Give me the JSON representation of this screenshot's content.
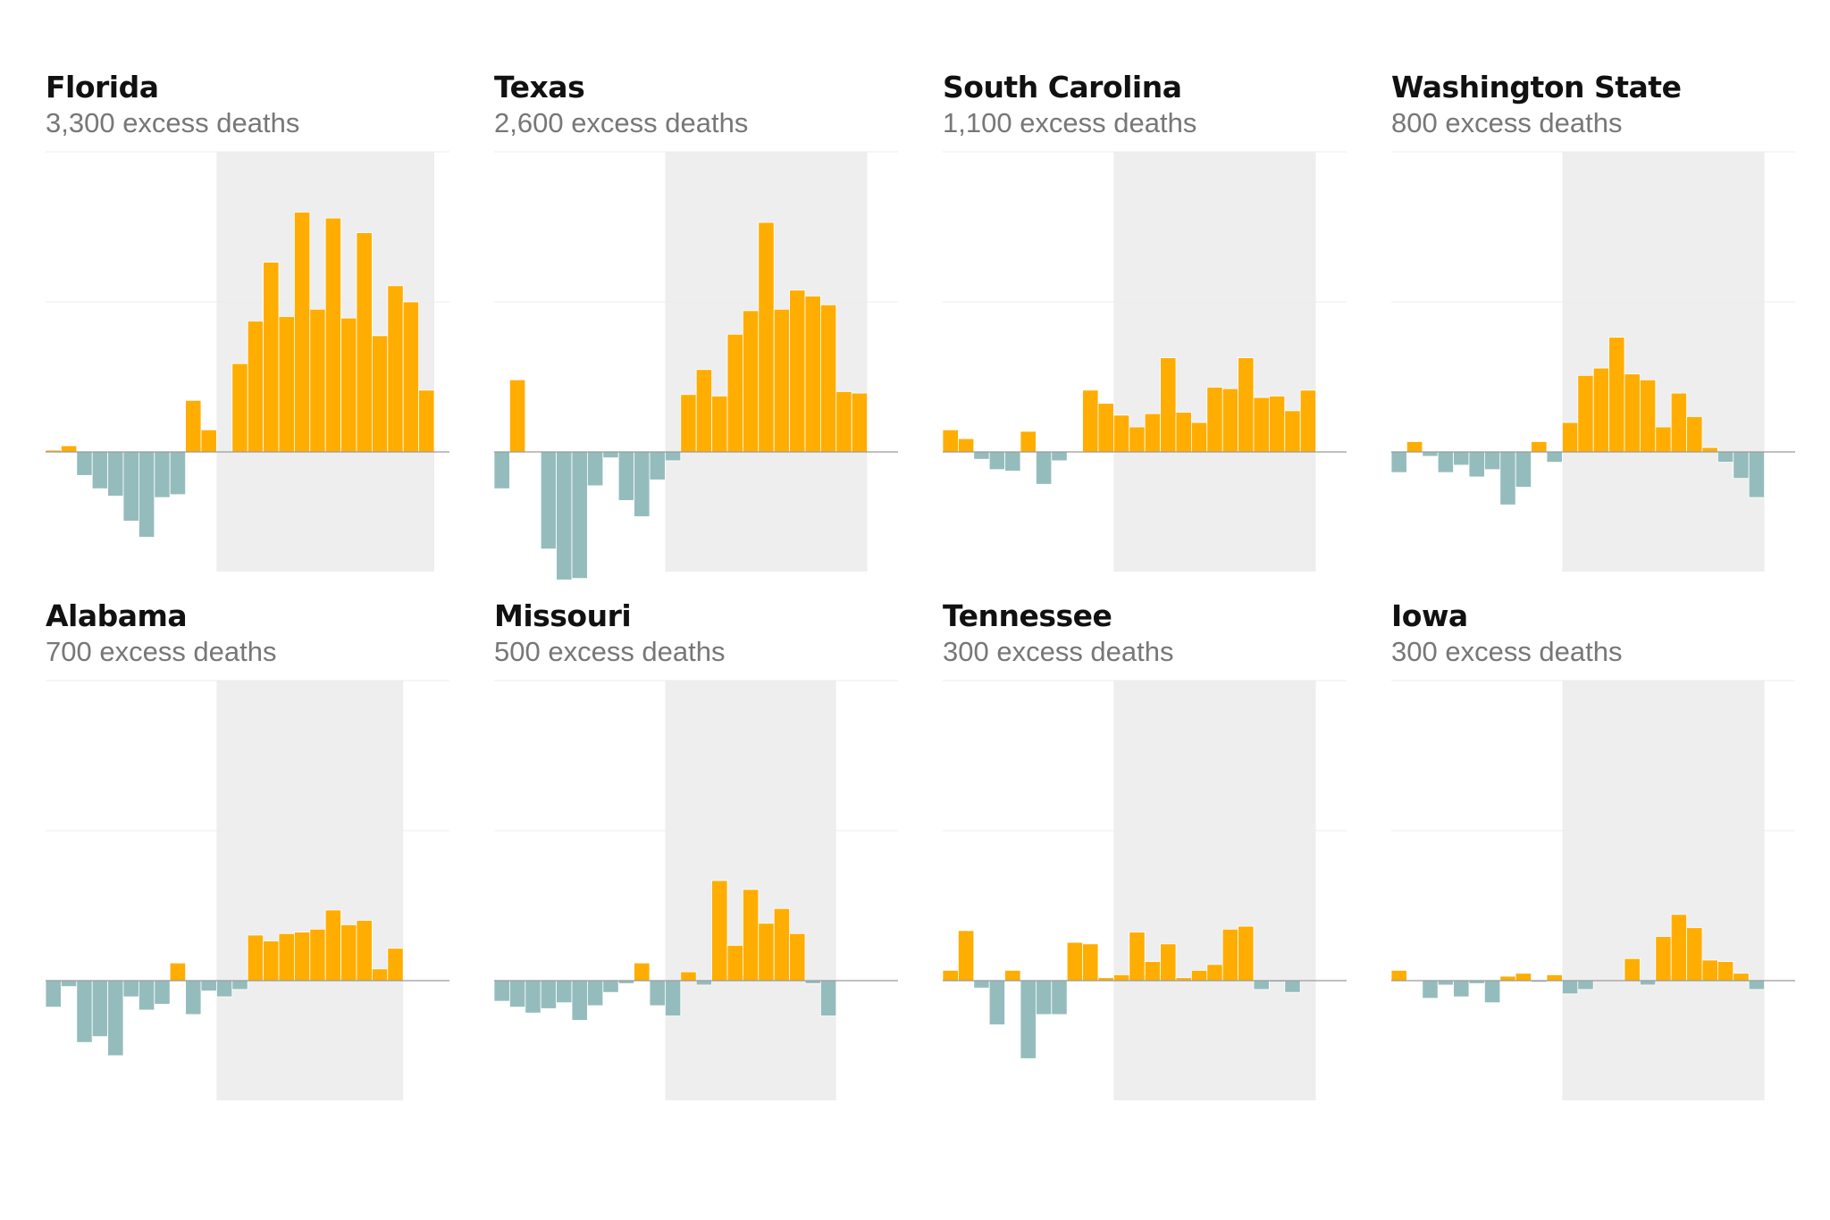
{
  "colors": {
    "positive": "#ffad00",
    "negative": "#95bcbd",
    "shade": "#eeeeee",
    "gridline": "#ececec",
    "baseline": "#9a9a9a"
  },
  "chart_data": [
    {
      "type": "bar",
      "title": "Florida",
      "subtitle": "3,300 excess deaths",
      "values": [
        6,
        21,
        -80,
        -125,
        -150,
        -235,
        -290,
        -155,
        -145,
        175,
        75,
        0,
        300,
        445,
        645,
        460,
        815,
        485,
        795,
        455,
        745,
        395,
        565,
        510,
        210
      ],
      "shaded_range": [
        11,
        24
      ],
      "ylim": [
        -410,
        1020
      ]
    },
    {
      "type": "bar",
      "title": "Texas",
      "subtitle": "2,600 excess deaths",
      "values": [
        -125,
        245,
        0,
        -330,
        -435,
        -430,
        -115,
        -20,
        -165,
        -220,
        -95,
        -30,
        195,
        280,
        190,
        400,
        480,
        780,
        485,
        550,
        530,
        500,
        205,
        200
      ],
      "shaded_range": [
        11,
        23
      ],
      "ylim": [
        -410,
        1020
      ]
    },
    {
      "type": "bar",
      "title": "South Carolina",
      "subtitle": "1,100 excess deaths",
      "values": [
        75,
        45,
        -25,
        -60,
        -65,
        70,
        -110,
        -30,
        0,
        210,
        165,
        125,
        85,
        130,
        320,
        135,
        100,
        220,
        215,
        320,
        185,
        190,
        140,
        210
      ],
      "shaded_range": [
        11,
        23
      ],
      "ylim": [
        -410,
        1020
      ]
    },
    {
      "type": "bar",
      "title": "Washington State",
      "subtitle": "800 excess deaths",
      "values": [
        -70,
        35,
        -15,
        -70,
        -45,
        -85,
        -60,
        -180,
        -120,
        35,
        -35,
        100,
        260,
        285,
        390,
        265,
        245,
        85,
        200,
        120,
        15,
        -35,
        -90,
        -155
      ],
      "shaded_range": [
        11,
        23
      ],
      "ylim": [
        -410,
        1020
      ]
    },
    {
      "type": "bar",
      "title": "Alabama",
      "subtitle": "700 excess deaths",
      "values": [
        -90,
        -20,
        -210,
        -190,
        -255,
        -55,
        -100,
        -80,
        60,
        -115,
        -35,
        -55,
        -30,
        155,
        135,
        160,
        165,
        175,
        240,
        190,
        205,
        40,
        110
      ],
      "shaded_range": [
        11,
        22
      ],
      "ylim": [
        -410,
        1020
      ]
    },
    {
      "type": "bar",
      "title": "Missouri",
      "subtitle": "500 excess deaths",
      "values": [
        -70,
        -90,
        -110,
        -95,
        -75,
        -135,
        -85,
        -40,
        -10,
        60,
        -85,
        -120,
        30,
        -15,
        340,
        120,
        310,
        195,
        245,
        160,
        -10,
        -120
      ],
      "shaded_range": [
        11,
        21
      ],
      "ylim": [
        -410,
        1020
      ]
    },
    {
      "type": "bar",
      "title": "Tennessee",
      "subtitle": "300 excess deaths",
      "values": [
        35,
        170,
        -25,
        -150,
        35,
        -265,
        -115,
        -115,
        130,
        125,
        10,
        20,
        165,
        65,
        125,
        10,
        35,
        55,
        175,
        185,
        -30,
        -5,
        -40
      ],
      "shaded_range": [
        11,
        23
      ],
      "ylim": [
        -410,
        1020
      ]
    },
    {
      "type": "bar",
      "title": "Iowa",
      "subtitle": "300 excess deaths",
      "values": [
        35,
        0,
        -60,
        -15,
        -55,
        -10,
        -75,
        15,
        25,
        -5,
        20,
        -45,
        -30,
        0,
        0,
        75,
        -15,
        150,
        225,
        180,
        70,
        65,
        25,
        -30
      ],
      "shaded_range": [
        11,
        23
      ],
      "ylim": [
        -410,
        1020
      ]
    }
  ]
}
